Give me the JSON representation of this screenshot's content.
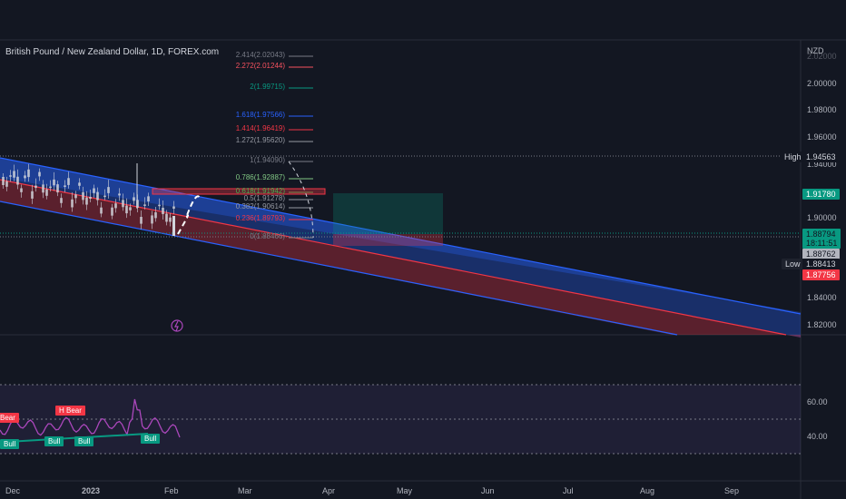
{
  "symbol_title": "British Pound / New Zealand Dollar, 1D, FOREX.com",
  "currency": "NZD",
  "price_axis": [
    "2.00000",
    "1.98000",
    "1.96000",
    "1.94000",
    "1.90000",
    "1.84000",
    "1.82000"
  ],
  "price_axis_top_partial": "2.02000",
  "markers": {
    "high_label": "High",
    "high_value": "1.94563",
    "low_label": "Low",
    "low_value": "1.88413",
    "last_value": "1.91780",
    "current_value": "1.88794",
    "countdown": "18:11:51",
    "prev_value": "1.88762",
    "red_value": "1.87756"
  },
  "fib_levels": [
    "2.414(2.02043)",
    "2.272(2.01244)",
    "2(1.99715)",
    "1.618(1.97566)",
    "1.414(1.96419)",
    "1.272(1.95620)",
    "1(1.94090)",
    "0.786(1.92887)",
    "0.618(1.91942)",
    "0.5(1.91278)",
    "0.382(1.90614)",
    "0.236(1.89793)",
    "0(1.88466)"
  ],
  "fib_colors": [
    "#787b86",
    "#f7525f",
    "#089981",
    "#2962ff",
    "#f23645",
    "#9598a1",
    "#787b86",
    "#81c784",
    "#4caf50",
    "#9598a1",
    "#9598a1",
    "#f23645",
    "#787b86"
  ],
  "rsi_axis": [
    "60.00",
    "40.00"
  ],
  "rsi_labels": {
    "bear_left": "Bear",
    "h_bear": "H Bear",
    "bull": "Bull"
  },
  "time_axis": [
    "Dec",
    "2023",
    "Feb",
    "Mar",
    "Apr",
    "May",
    "Jun",
    "Jul",
    "Aug",
    "Sep"
  ],
  "colors": {
    "up": "#089981",
    "down": "#f23645",
    "channel_blue": "#2962ff",
    "channel_red": "#f23645",
    "rsi": "#ab47bc"
  }
}
